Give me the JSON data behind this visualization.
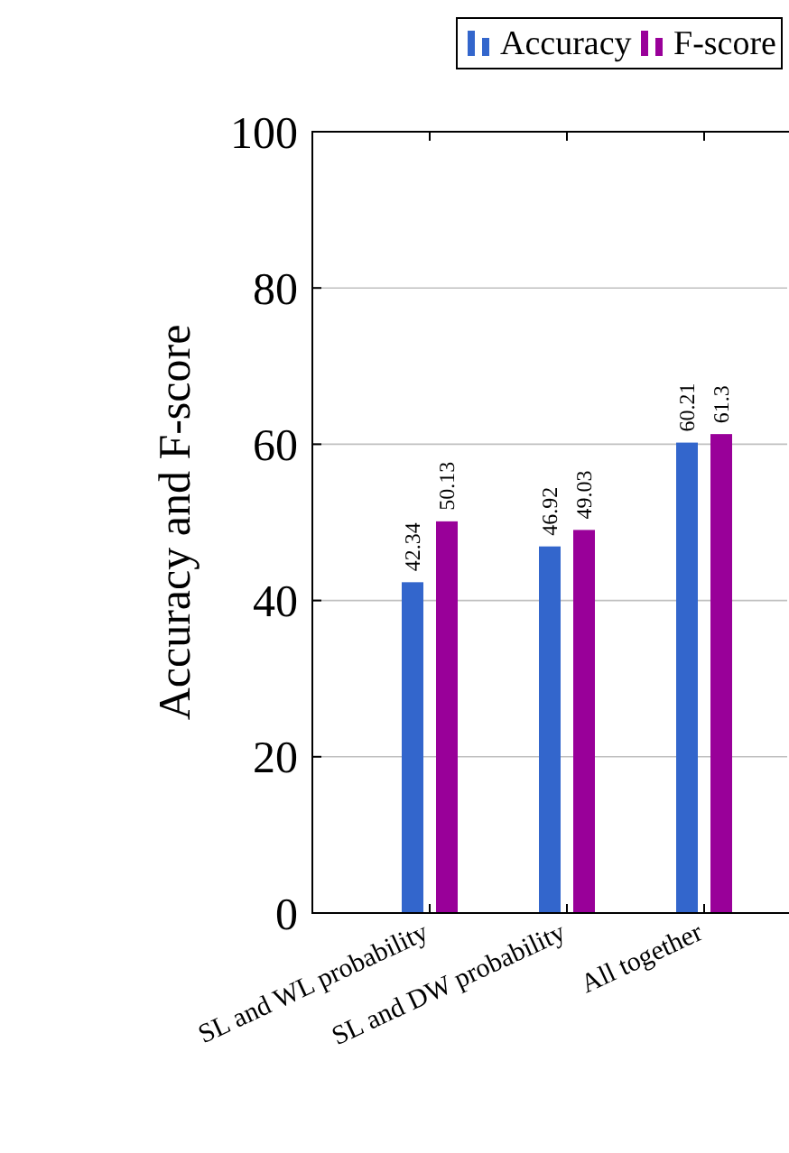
{
  "chart_data": {
    "type": "bar",
    "ylabel": "Accuracy and F-score",
    "categories": [
      "SL and WL probability",
      "SL and DW probability",
      "All together"
    ],
    "series": [
      {
        "name": "Accuracy",
        "color": "#3366cc",
        "values": [
          42.34,
          46.92,
          60.21
        ]
      },
      {
        "name": "F-score",
        "color": "#990099",
        "values": [
          50.13,
          49.03,
          61.3
        ]
      }
    ],
    "ylim": [
      0,
      100
    ],
    "yticks": [
      0,
      20,
      40,
      60,
      80,
      100
    ],
    "grid": "y",
    "legend": "top",
    "data_labels": true
  }
}
